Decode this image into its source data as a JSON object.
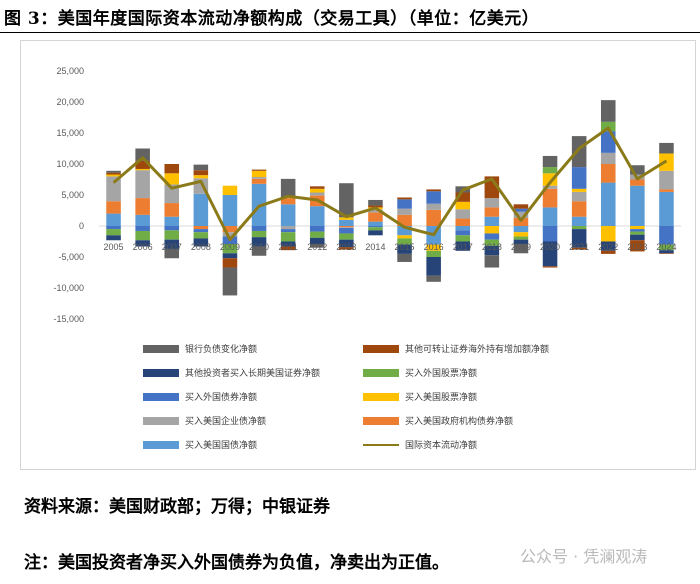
{
  "title": "图 3：美国年度国际资本流动净额构成（交易工具）（单位：亿美元）",
  "source": "资料来源：美国财政部；万得；中银证券",
  "note": "注：美国投资者净买入外国债券为负值，净卖出为正值。",
  "watermark": "公众号 · 凭澜观涛",
  "chart_data": {
    "type": "bar",
    "stacked": true,
    "categories": [
      "2005",
      "2006",
      "2007",
      "2008",
      "2009",
      "2010",
      "2011",
      "2012",
      "2013",
      "2014",
      "2015",
      "2016",
      "2017",
      "2018",
      "2019",
      "2020",
      "2021",
      "2022",
      "2023",
      "2024"
    ],
    "ylim": [
      -15000,
      25000
    ],
    "yticks": [
      -15000,
      -10000,
      -5000,
      0,
      5000,
      10000,
      15000,
      20000,
      25000
    ],
    "ytick_labels": [
      "-15,000",
      "-10,000",
      "-5,000",
      "0",
      "5,000",
      "10,000",
      "15,000",
      "20,000",
      "25,000"
    ],
    "grid": false,
    "legend_position": "bottom",
    "series": [
      {
        "name": "买入美国国债净额",
        "color": "#5b9bd5",
        "values": [
          2000,
          1800,
          1500,
          5200,
          5000,
          6800,
          3500,
          3200,
          1000,
          700,
          -1500,
          -3000,
          -700,
          1500,
          -1000,
          3000,
          1500,
          7000,
          6500,
          5500
        ]
      },
      {
        "name": "买入美国政府机构债券净额",
        "color": "#ed7d31",
        "values": [
          2000,
          2700,
          2200,
          -500,
          -1000,
          800,
          1000,
          1700,
          -200,
          1500,
          1800,
          2600,
          1200,
          1500,
          1300,
          3000,
          2500,
          3000,
          1000,
          400
        ]
      },
      {
        "name": "买入美国企业债净额",
        "color": "#a5a5a5",
        "values": [
          4000,
          4500,
          3000,
          2500,
          -700,
          300,
          -500,
          500,
          -100,
          500,
          1000,
          1000,
          1500,
          1500,
          1000,
          500,
          1500,
          1800,
          800,
          3000
        ]
      },
      {
        "name": "买入美国股票净额",
        "color": "#ffc000",
        "values": [
          300,
          200,
          1800,
          500,
          1500,
          1000,
          100,
          600,
          400,
          300,
          -500,
          -1000,
          1200,
          -1200,
          -700,
          2000,
          500,
          -2500,
          -500,
          2800
        ]
      },
      {
        "name": "买入外国债券净额",
        "color": "#4472c4",
        "values": [
          -500,
          -800,
          -700,
          -500,
          -1200,
          -800,
          -500,
          -900,
          -900,
          -200,
          1500,
          2000,
          -800,
          -1000,
          500,
          -2500,
          3500,
          3500,
          -400,
          -3000
        ]
      },
      {
        "name": "买入外国股票净额",
        "color": "#70ad47",
        "values": [
          -1000,
          -1500,
          -1500,
          -1000,
          -1500,
          -1000,
          -1500,
          -1000,
          -1000,
          -500,
          -1000,
          -1000,
          -1000,
          -1000,
          -500,
          1000,
          -500,
          1500,
          -500,
          -900
        ]
      },
      {
        "name": "其他投资者买入长期美国证券净额",
        "color": "#264478",
        "values": [
          -800,
          -1000,
          -1500,
          -1300,
          -800,
          -1500,
          -800,
          -1000,
          -1200,
          -800,
          -1500,
          -3000,
          -1500,
          -1500,
          -700,
          -4000,
          -3000,
          -1500,
          -900,
          -500
        ]
      },
      {
        "name": "其他可转让证券海外持有增加额净额",
        "color": "#9e480e",
        "values": [
          300,
          1300,
          1500,
          800,
          -1500,
          200,
          -600,
          400,
          -400,
          300,
          300,
          300,
          1500,
          3500,
          700,
          -200,
          -300,
          -500,
          -1800,
          -100
        ]
      },
      {
        "name": "银行负债变化净额",
        "color": "#636363",
        "values": [
          300,
          2000,
          -1500,
          900,
          -4500,
          -1500,
          3000,
          -600,
          5500,
          900,
          -1300,
          -1000,
          1000,
          -2000,
          -1500,
          1800,
          5000,
          3500,
          1500,
          1700
        ]
      },
      {
        "name": "国际资本流动净额",
        "color": "#8b7a1a",
        "type": "line",
        "values": [
          7000,
          11000,
          6100,
          7200,
          -2200,
          3200,
          4800,
          4200,
          1500,
          2900,
          -200,
          -1400,
          5800,
          7600,
          900,
          7000,
          12500,
          15800,
          7600,
          10500
        ]
      }
    ]
  }
}
